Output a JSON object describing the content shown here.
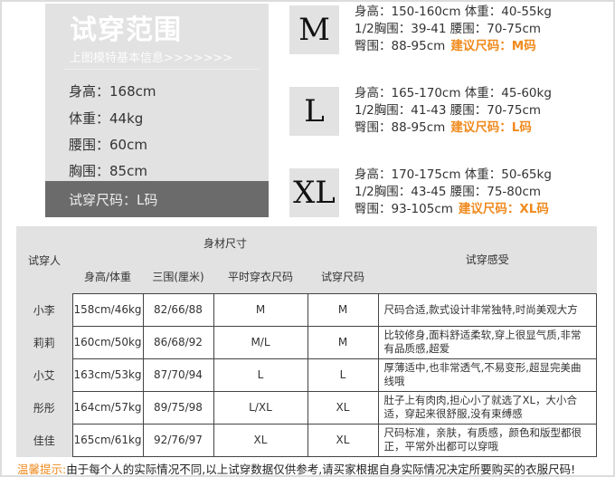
{
  "model": {
    "title": "试穿范围",
    "subtitle": "上图模特基本信息>>>>>>>",
    "info": [
      "身高：168cm",
      "体重：44kg",
      "腰围：60cm",
      "胸围：85cm"
    ],
    "trial": "试穿尺码：L码"
  },
  "sizes": [
    {
      "label": "M",
      "lines": [
        "身高：150-160cm 体重：40-55kg",
        "1/2胸围：39-41 腰围：70-75cm",
        "臀围：88-95cm"
      ],
      "rec": "建议尺码：M码"
    },
    {
      "label": "L",
      "lines": [
        "身高：165-170cm 体重：45-60kg",
        "1/2胸围：41-43 腰围：70-75cm",
        "臀围：88-95cm"
      ],
      "rec": "建议尺码：L码"
    },
    {
      "label": "XL",
      "lines": [
        "身高：170-175cm 体重：50-65kg",
        "1/2胸围：43-45 腰围：75-80cm",
        "臀围：93-105cm"
      ],
      "rec": "建议尺码：XL码"
    }
  ],
  "table": {
    "h_person": "试穿人",
    "h_body": "身材尺寸",
    "h_feel": "试穿感受",
    "cols": [
      "身高/体重",
      "三围(厘米)",
      "平时穿衣尺码",
      "试穿尺码"
    ],
    "rows": [
      [
        "小李",
        "158cm/46kg",
        "82/66/88",
        "M",
        "M",
        "尺码合适,款式设计非常独特,时尚美观大方"
      ],
      [
        "莉莉",
        "160cm/50kg",
        "86/68/92",
        "M/L",
        "M",
        "比较修身,面料舒适柔软,穿上很显气质,非常有品质感,超爱"
      ],
      [
        "小艾",
        "163cm/53kg",
        "87/70/94",
        "L",
        "L",
        "厚薄适中,也非常透气,不易变形,超显完美曲线哦"
      ],
      [
        "彤彤",
        "164cm/57kg",
        "89/75/98",
        "L/XL",
        "XL",
        "肚子上有肉肉,担心小了就选了XL，大小合适，穿起来很舒服,没有束缚感"
      ],
      [
        "佳佳",
        "165cm/61kg",
        "92/76/97",
        "XL",
        "XL",
        "尺码标准，亲肤，有质感，颜色和版型都很正，平常外出都可以穿哦"
      ]
    ]
  },
  "tip": {
    "label": "温馨提示:",
    "text": "由于每个人的实际情况不同,以上试穿数据仅供参考,请买家根据自身实际情况决定所要购买的衣服尺码!"
  },
  "colors": {
    "accent": "#f08a1e",
    "panel": "#e2e2e2",
    "band": "#6b6b6b"
  }
}
